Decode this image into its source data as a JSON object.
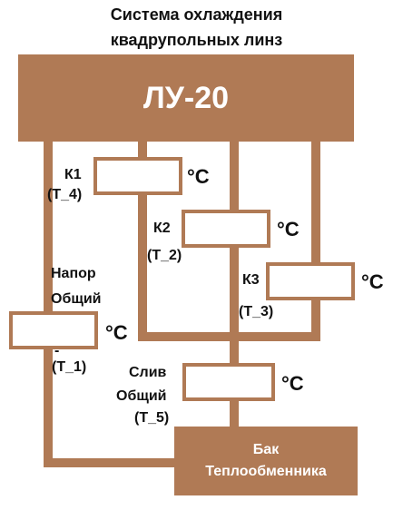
{
  "title": {
    "line1": "Система охлаждения",
    "line2": "квадрупольных линз"
  },
  "main_block": {
    "label": "ЛУ-20"
  },
  "tank": {
    "line1": "Бак",
    "line2": "Теплообменника"
  },
  "sensors": {
    "k1": {
      "name": "К1",
      "tag": "(Т_4)",
      "unit": "°C"
    },
    "k2": {
      "name": "К2",
      "tag": "(Т_2)",
      "unit": "°C"
    },
    "k3": {
      "name": "К3",
      "tag": "(Т_3)",
      "unit": "°C"
    },
    "supply": {
      "line1": "Напор",
      "line2": "Общий",
      "dash": "-",
      "tag": "(Т_1)",
      "unit": "°C"
    },
    "drain": {
      "line1": "Слив",
      "line2": "Общий",
      "tag": "(Т_5)",
      "unit": "°C"
    }
  },
  "colors": {
    "pipe": "#b07a55",
    "text": "#111111",
    "background": "#ffffff"
  }
}
